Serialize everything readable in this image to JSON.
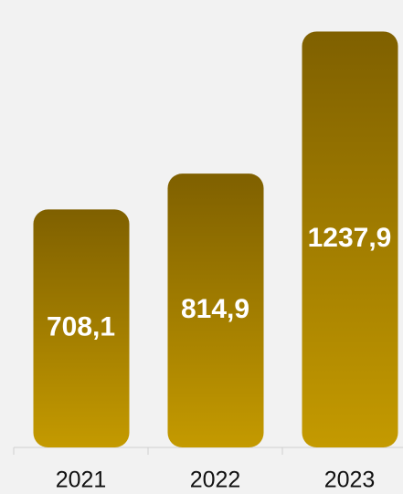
{
  "chart_data": {
    "type": "bar",
    "categories": [
      "2021",
      "2022",
      "2023"
    ],
    "values": [
      708.1,
      814.9,
      1237.9
    ],
    "value_labels": [
      "708,1",
      "814,9",
      "1237,9"
    ],
    "gradient": [
      "#7f6000",
      "#c49a00"
    ],
    "ylim": [
      0,
      1250
    ]
  }
}
